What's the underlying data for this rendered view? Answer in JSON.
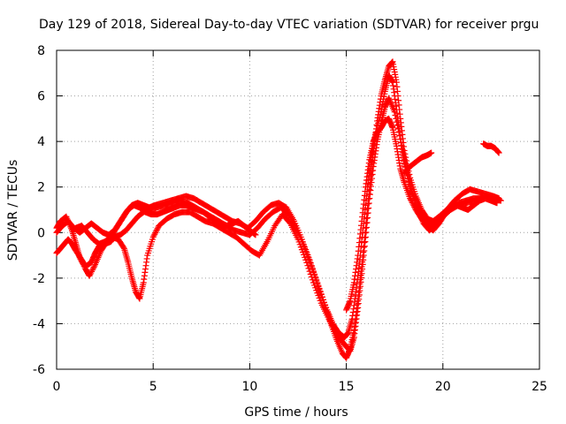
{
  "chart_data": {
    "type": "scatter",
    "title": "Day 129 of 2018, Sidereal Day-to-day VTEC variation (SDTVAR) for receiver prgu",
    "xlabel": "GPS time / hours",
    "ylabel": "SDTVAR / TECUs",
    "xlim": [
      0,
      25
    ],
    "ylim": [
      -6,
      8
    ],
    "xticks": [
      0,
      5,
      10,
      15,
      20,
      25
    ],
    "yticks": [
      -6,
      -4,
      -2,
      0,
      2,
      4,
      6,
      8
    ],
    "xtick_labels": [
      "0",
      "5",
      "10",
      "15",
      "20",
      "25"
    ],
    "ytick_labels": [
      "-6",
      "-4",
      "-2",
      "0",
      "2",
      "4",
      "6",
      "8"
    ],
    "grid": true,
    "marker": "+",
    "color": "#ff0000",
    "series": [
      {
        "name": "track-a",
        "x": [
          0.0,
          0.2,
          0.4,
          0.6,
          0.8,
          1.0,
          1.3,
          1.5,
          1.8,
          2.0,
          2.2,
          2.5,
          2.8,
          3.0,
          3.3,
          3.6,
          3.9,
          4.2,
          4.5,
          4.8,
          5.2,
          5.6,
          6.0,
          6.4,
          6.8,
          7.2,
          7.6,
          8.0,
          8.4,
          8.8,
          9.2,
          9.6,
          10.0,
          10.4,
          10.8,
          11.2,
          11.6,
          12.0,
          12.4,
          12.8,
          13.2,
          13.6,
          14.0,
          14.3,
          14.6,
          14.9,
          15.1,
          15.3,
          15.5,
          15.7,
          15.9,
          16.1,
          16.3,
          16.5,
          16.8,
          17.0,
          17.2,
          17.4,
          17.6,
          17.8,
          18.0,
          18.3,
          18.6,
          19.0,
          19.3,
          19.6,
          20.0,
          20.4,
          20.8,
          21.2,
          21.6,
          22.0,
          22.4,
          22.8,
          23.0
        ],
        "y": [
          -0.9,
          -0.7,
          -0.5,
          -0.3,
          -0.5,
          -0.8,
          -1.2,
          -1.5,
          -1.3,
          -0.9,
          -0.6,
          -0.5,
          -0.4,
          -0.2,
          -0.1,
          0.1,
          0.4,
          0.7,
          0.9,
          1.0,
          1.1,
          1.2,
          1.3,
          1.4,
          1.3,
          1.1,
          0.9,
          0.7,
          0.5,
          0.3,
          0.1,
          0.0,
          -0.1,
          0.2,
          0.6,
          0.9,
          1.1,
          0.8,
          0.2,
          -0.6,
          -1.5,
          -2.5,
          -3.4,
          -4.0,
          -4.4,
          -4.6,
          -4.4,
          -3.8,
          -2.6,
          -1.2,
          0.4,
          2.0,
          3.3,
          4.3,
          5.3,
          6.2,
          6.9,
          6.6,
          5.4,
          4.1,
          3.0,
          2.0,
          1.3,
          0.7,
          0.4,
          0.5,
          0.8,
          1.1,
          1.3,
          1.4,
          1.5,
          1.5,
          1.6,
          1.5,
          1.4
        ]
      },
      {
        "name": "track-b",
        "x": [
          0.0,
          0.2,
          0.5,
          0.8,
          1.0,
          1.2,
          1.5,
          1.7,
          2.0,
          2.3,
          2.6,
          2.9,
          3.2,
          3.5,
          3.7,
          3.9,
          4.1,
          4.3,
          4.5,
          4.7,
          5.0,
          5.3,
          5.7,
          6.1,
          6.5,
          6.9,
          7.3,
          7.7,
          8.1,
          8.5,
          8.9,
          9.3,
          9.7,
          10.1,
          10.5,
          10.9,
          11.3,
          11.7,
          12.1,
          12.5,
          12.9,
          13.3,
          13.7,
          14.1,
          14.4,
          14.7,
          15.0,
          15.2,
          15.4,
          15.6,
          15.8,
          16.0,
          16.2,
          16.4,
          16.6,
          16.8,
          17.0,
          17.2,
          17.5,
          17.8,
          18.1,
          18.4,
          18.7,
          19.0,
          19.3,
          19.6,
          20.0,
          20.4,
          20.8,
          21.2,
          21.6,
          22.0,
          22.4,
          22.8
        ],
        "y": [
          0.2,
          0.5,
          0.7,
          0.1,
          -0.5,
          -1.1,
          -1.6,
          -1.9,
          -1.4,
          -0.8,
          -0.4,
          -0.2,
          -0.3,
          -0.7,
          -1.3,
          -2.0,
          -2.6,
          -2.9,
          -2.2,
          -1.0,
          -0.2,
          0.3,
          0.6,
          0.8,
          0.9,
          0.9,
          0.7,
          0.5,
          0.4,
          0.2,
          0.0,
          -0.2,
          -0.5,
          -0.8,
          -1.0,
          -0.4,
          0.3,
          0.8,
          0.4,
          -0.3,
          -1.2,
          -2.2,
          -3.1,
          -3.8,
          -4.3,
          -4.7,
          -5.0,
          -5.2,
          -4.6,
          -3.3,
          -1.8,
          -0.2,
          1.5,
          2.9,
          4.0,
          4.8,
          5.5,
          5.9,
          5.3,
          4.1,
          2.9,
          1.8,
          1.0,
          0.4,
          0.1,
          0.3,
          0.7,
          1.0,
          1.2,
          1.3,
          1.4,
          1.5,
          1.5,
          1.4
        ]
      },
      {
        "name": "track-c",
        "x": [
          0.0,
          0.3,
          0.6,
          0.9,
          1.2,
          1.5,
          1.8,
          2.1,
          2.4,
          2.7,
          3.0,
          3.3,
          3.6,
          3.9,
          4.2,
          4.5,
          4.8,
          5.1,
          5.5,
          5.9,
          6.3,
          6.7,
          7.1,
          7.5,
          7.9,
          8.3,
          8.7,
          9.1,
          9.5,
          9.9,
          10.3,
          10.7,
          11.1,
          11.5,
          11.9,
          12.3,
          12.7,
          13.1,
          13.5,
          13.9,
          14.2,
          14.5,
          14.8,
          15.0,
          15.2,
          15.4,
          15.6,
          15.8,
          16.0,
          16.2,
          16.4,
          16.6,
          16.8,
          17.0,
          17.2,
          17.4,
          17.6,
          17.8,
          18.0,
          18.3,
          18.6,
          18.9,
          19.2,
          19.5,
          19.8,
          20.2,
          20.6,
          21.0,
          21.4,
          21.8,
          22.2,
          22.6,
          22.9
        ],
        "y": [
          0.0,
          0.3,
          0.5,
          0.2,
          0.0,
          0.2,
          0.4,
          0.2,
          0.0,
          -0.1,
          0.1,
          0.5,
          0.9,
          1.2,
          1.3,
          1.2,
          1.1,
          1.2,
          1.3,
          1.4,
          1.5,
          1.6,
          1.5,
          1.3,
          1.1,
          0.9,
          0.7,
          0.5,
          0.4,
          0.2,
          0.5,
          0.9,
          1.2,
          1.3,
          1.1,
          0.5,
          -0.3,
          -1.2,
          -2.2,
          -3.2,
          -4.0,
          -4.7,
          -5.3,
          -5.5,
          -5.1,
          -4.3,
          -3.0,
          -1.5,
          0.2,
          1.9,
          3.5,
          4.9,
          6.0,
          6.7,
          7.3,
          7.5,
          6.6,
          5.0,
          3.6,
          2.4,
          1.6,
          1.0,
          0.6,
          0.5,
          0.7,
          1.0,
          1.4,
          1.7,
          1.9,
          1.8,
          1.7,
          1.6,
          1.5
        ]
      },
      {
        "name": "track-d",
        "x": [
          0.8,
          1.0,
          1.3,
          1.6,
          1.9,
          2.2,
          2.5,
          2.8,
          3.1,
          3.4,
          3.7,
          4.0,
          4.3,
          4.6,
          4.9,
          5.2,
          5.5,
          5.8,
          6.1,
          6.4,
          6.7,
          7.0,
          7.3,
          7.6,
          7.9,
          8.2,
          8.5,
          8.8,
          9.1,
          9.4,
          9.7,
          10.0,
          10.3
        ],
        "y": [
          0.1,
          0.2,
          0.3,
          0.0,
          -0.3,
          -0.5,
          -0.4,
          -0.2,
          0.2,
          0.6,
          1.0,
          1.2,
          1.1,
          0.9,
          0.8,
          0.8,
          0.9,
          1.0,
          1.1,
          1.2,
          1.2,
          1.1,
          1.0,
          0.9,
          0.7,
          0.5,
          0.4,
          0.3,
          0.4,
          0.5,
          0.3,
          0.1,
          -0.1
        ]
      },
      {
        "name": "track-e",
        "x": [
          15.0,
          15.2,
          15.4,
          15.6,
          15.8,
          16.0,
          16.2,
          16.4,
          16.6,
          16.8,
          17.0,
          17.2,
          17.4,
          17.6,
          17.8,
          18.0,
          18.3,
          18.6,
          18.9,
          19.2,
          19.5,
          19.8,
          20.1,
          20.4,
          20.7,
          21.0,
          21.3,
          21.6,
          21.9,
          22.2,
          22.5,
          22.8
        ],
        "y": [
          -3.4,
          -3.0,
          -2.2,
          -1.0,
          0.5,
          2.0,
          3.2,
          4.0,
          4.4,
          4.6,
          4.9,
          5.0,
          4.6,
          3.8,
          2.8,
          2.2,
          1.5,
          1.0,
          0.6,
          0.3,
          0.1,
          0.4,
          0.8,
          1.1,
          1.2,
          1.1,
          1.0,
          1.2,
          1.4,
          1.5,
          1.4,
          1.3
        ]
      },
      {
        "name": "track-f",
        "x": [
          18.0,
          18.3,
          18.6,
          18.9,
          19.2,
          19.4,
          22.1,
          22.3,
          22.5,
          22.7,
          22.9
        ],
        "y": [
          2.6,
          2.9,
          3.1,
          3.3,
          3.4,
          3.5,
          3.9,
          3.8,
          3.8,
          3.7,
          3.5
        ]
      }
    ]
  }
}
